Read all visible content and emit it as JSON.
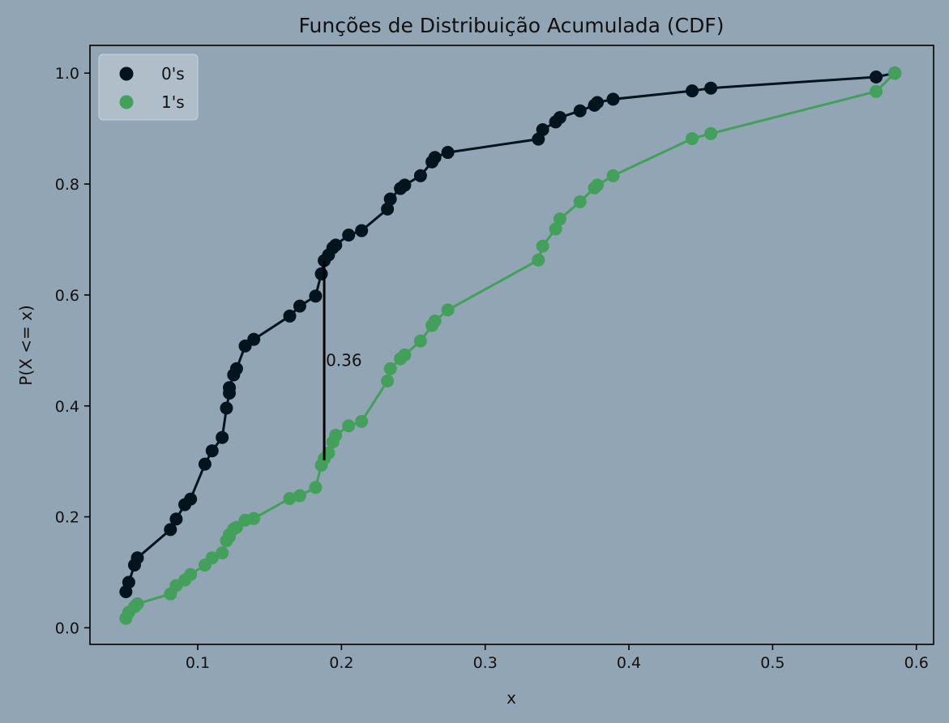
{
  "chart_data": {
    "type": "line",
    "title": "Funções de Distribuição Acumulada (CDF)",
    "xlabel": "x",
    "ylabel": "P(X <= x)",
    "xlim": [
      0.025,
      0.612
    ],
    "ylim": [
      -0.03,
      1.05
    ],
    "xticks": [
      0.1,
      0.2,
      0.3,
      0.4,
      0.5,
      0.6
    ],
    "yticks": [
      0.0,
      0.2,
      0.4,
      0.6,
      0.8,
      1.0
    ],
    "xtick_labels": [
      "0.1",
      "0.2",
      "0.3",
      "0.4",
      "0.5",
      "0.6"
    ],
    "ytick_labels": [
      "0.0",
      "0.2",
      "0.4",
      "0.6",
      "0.8",
      "1.0"
    ],
    "legend_position": "top-left",
    "grid": false,
    "series": [
      {
        "name": "0's",
        "color": "#03141f",
        "x": [
          0.05,
          0.052,
          0.056,
          0.058,
          0.081,
          0.085,
          0.091,
          0.095,
          0.105,
          0.11,
          0.117,
          0.12,
          0.122,
          0.122,
          0.125,
          0.127,
          0.133,
          0.139,
          0.164,
          0.171,
          0.182,
          0.186,
          0.188,
          0.191,
          0.194,
          0.196,
          0.205,
          0.214,
          0.232,
          0.234,
          0.241,
          0.244,
          0.255,
          0.263,
          0.265,
          0.274,
          0.337,
          0.34,
          0.349,
          0.352,
          0.366,
          0.376,
          0.378,
          0.389,
          0.444,
          0.457,
          0.572,
          0.585
        ],
        "y": [
          0.065,
          0.082,
          0.113,
          0.126,
          0.177,
          0.196,
          0.222,
          0.232,
          0.295,
          0.319,
          0.343,
          0.396,
          0.423,
          0.433,
          0.456,
          0.467,
          0.508,
          0.52,
          0.562,
          0.58,
          0.598,
          0.638,
          0.662,
          0.672,
          0.685,
          0.69,
          0.708,
          0.716,
          0.755,
          0.773,
          0.792,
          0.798,
          0.815,
          0.84,
          0.848,
          0.857,
          0.881,
          0.898,
          0.912,
          0.92,
          0.932,
          0.942,
          0.947,
          0.953,
          0.968,
          0.973,
          0.993,
          1.0
        ]
      },
      {
        "name": "1's",
        "color": "#43a05a",
        "x": [
          0.05,
          0.052,
          0.056,
          0.058,
          0.081,
          0.085,
          0.091,
          0.095,
          0.105,
          0.11,
          0.117,
          0.12,
          0.122,
          0.122,
          0.125,
          0.127,
          0.133,
          0.139,
          0.164,
          0.171,
          0.182,
          0.186,
          0.188,
          0.191,
          0.194,
          0.196,
          0.205,
          0.214,
          0.232,
          0.234,
          0.241,
          0.244,
          0.255,
          0.263,
          0.265,
          0.274,
          0.337,
          0.34,
          0.349,
          0.352,
          0.366,
          0.376,
          0.378,
          0.389,
          0.444,
          0.457,
          0.572,
          0.585
        ],
        "y": [
          0.017,
          0.028,
          0.038,
          0.043,
          0.061,
          0.076,
          0.086,
          0.096,
          0.113,
          0.126,
          0.135,
          0.157,
          0.164,
          0.168,
          0.178,
          0.181,
          0.194,
          0.197,
          0.233,
          0.238,
          0.253,
          0.293,
          0.305,
          0.315,
          0.335,
          0.347,
          0.364,
          0.372,
          0.445,
          0.467,
          0.485,
          0.492,
          0.517,
          0.545,
          0.553,
          0.573,
          0.663,
          0.688,
          0.719,
          0.737,
          0.768,
          0.793,
          0.798,
          0.815,
          0.882,
          0.891,
          0.967,
          1.0
        ]
      }
    ],
    "annotation": {
      "label": "0.36",
      "x": 0.188,
      "y_low": 0.302,
      "y_high": 0.662,
      "color": "#000000"
    }
  }
}
